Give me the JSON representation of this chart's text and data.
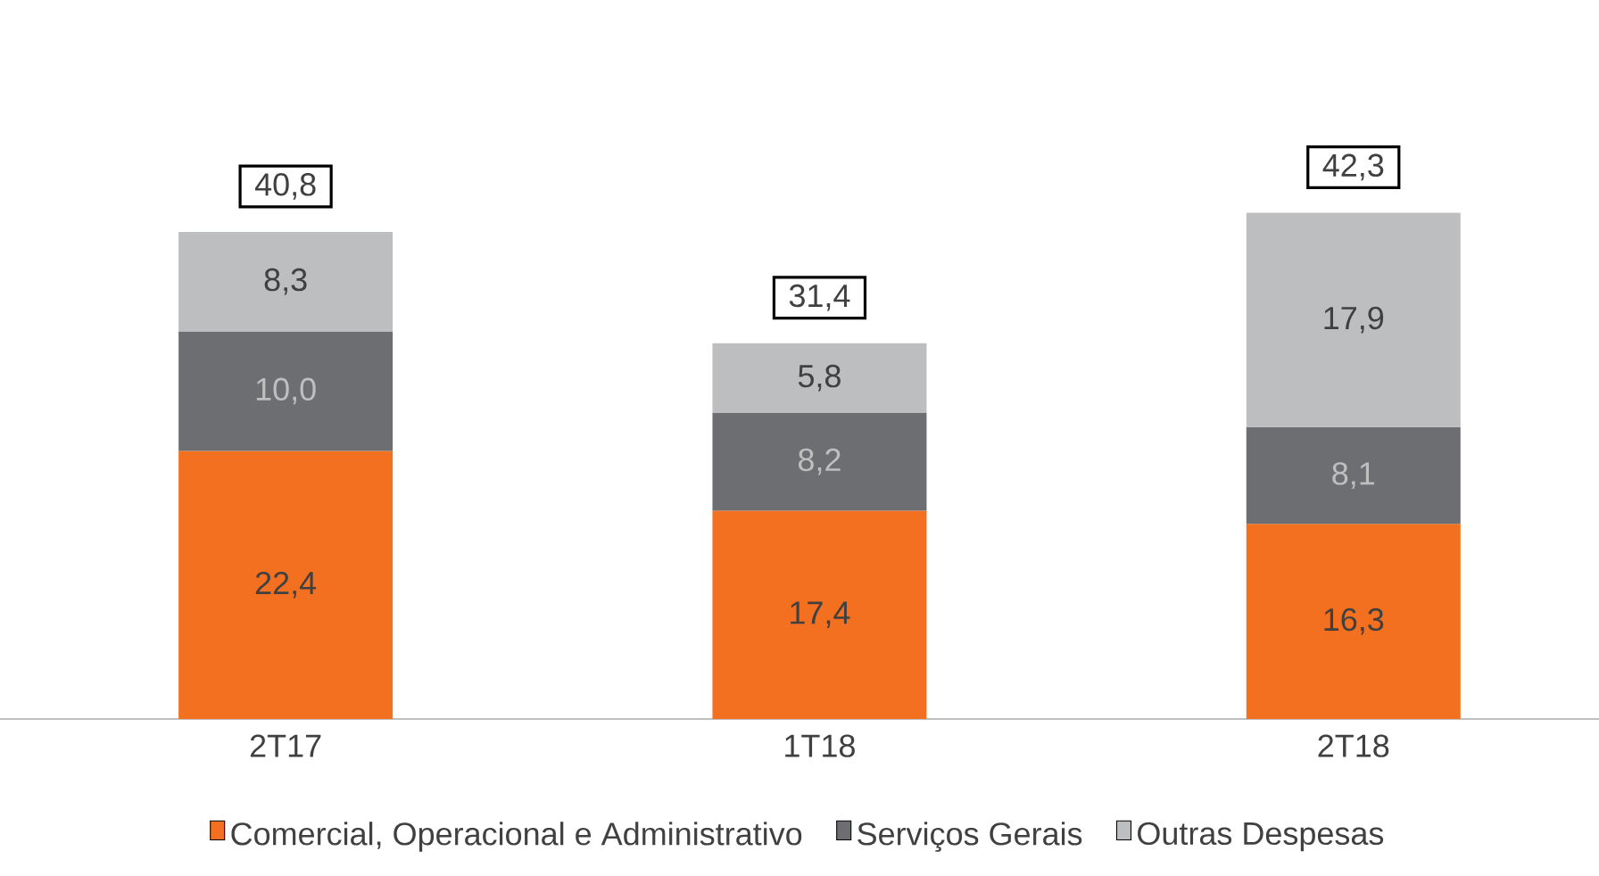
{
  "chart_data": {
    "type": "bar",
    "stacked": true,
    "categories": [
      "2T17",
      "1T18",
      "2T18"
    ],
    "series": [
      {
        "name": "Comercial, Operacional e Administrativo",
        "color": "#f37021",
        "values": [
          22.4,
          17.4,
          16.3
        ],
        "value_labels": [
          "22,4",
          "17,4",
          "16,3"
        ]
      },
      {
        "name": "Serviços Gerais",
        "color": "#6d6e71",
        "values": [
          10.0,
          8.2,
          8.1
        ],
        "value_labels": [
          "10,0",
          "8,2",
          "8,1"
        ]
      },
      {
        "name": "Outras Despesas",
        "color": "#bcbec0",
        "values": [
          8.3,
          5.8,
          17.9
        ],
        "value_labels": [
          "8,3",
          "5,8",
          "17,9"
        ]
      }
    ],
    "totals": [
      "40,8",
      "31,4",
      "42,3"
    ],
    "legend": "bottom"
  }
}
